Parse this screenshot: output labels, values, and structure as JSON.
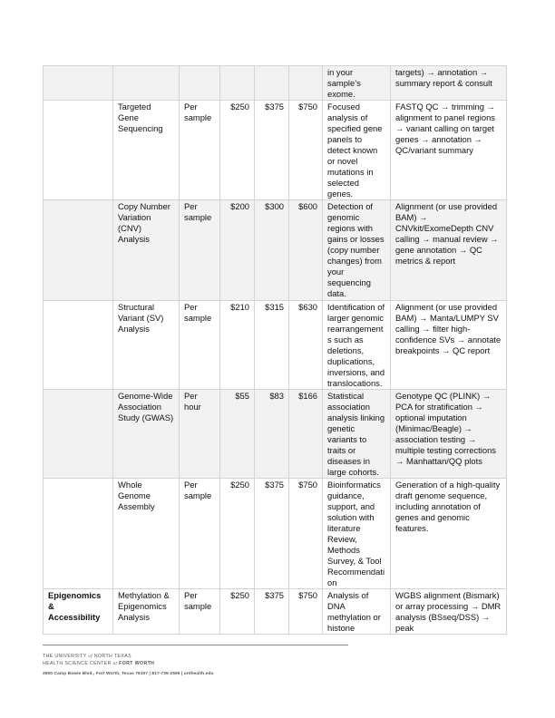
{
  "table": {
    "rows": [
      {
        "category": "",
        "service": "",
        "unit": "",
        "price1": "",
        "price2": "",
        "price3": "",
        "description": "in your sample’s exome.",
        "workflow": "targets) → annotation → summary report & consult"
      },
      {
        "category": "",
        "service": "Targeted Gene Sequencing",
        "unit": "Per sample",
        "price1": "$250",
        "price2": "$375",
        "price3": "$750",
        "description": "Focused analysis of specified gene panels to detect known or novel mutations in selected genes.",
        "workflow": "FASTQ QC → trimming → alignment to panel regions → variant calling on target genes → annotation → QC/variant summary"
      },
      {
        "category": "",
        "service": "Copy Number Variation (CNV) Analysis",
        "unit": "Per sample",
        "price1": "$200",
        "price2": "$300",
        "price3": "$600",
        "description": "Detection of genomic regions with gains or losses (copy number changes) from your sequencing data.",
        "workflow": "Alignment (or use provided BAM) → CNVkit/ExomeDepth CNV calling → manual review → gene annotation → QC metrics & report"
      },
      {
        "category": "",
        "service": "Structural Variant (SV) Analysis",
        "unit": "Per sample",
        "price1": "$210",
        "price2": "$315",
        "price3": "$630",
        "description": "Identification of larger genomic rearrangement s such as deletions, duplications, inversions, and translocations.",
        "workflow": "Alignment (or use provided BAM) → Manta/LUMPY SV calling → filter high-confidence SVs → annotate breakpoints → QC report"
      },
      {
        "category": "",
        "service": "Genome-Wide Association Study (GWAS)",
        "unit": "Per hour",
        "price1": "$55",
        "price2": "$83",
        "price3": "$166",
        "description": "Statistical association analysis linking genetic variants to traits or diseases in large cohorts.",
        "workflow": "Genotype QC (PLINK) → PCA for stratification → optional imputation (Minimac/Beagle) → association testing → multiple testing corrections → Manhattan/QQ plots"
      },
      {
        "category": "",
        "service": "Whole Genome Assembly",
        "unit": "Per sample",
        "price1": "$250",
        "price2": "$375",
        "price3": "$750",
        "description": "Bioinformatics guidance, support, and solution with literature Review, Methods Survey, & Tool Recommendati on",
        "workflow": "Generation of a high-quality draft genome sequence, including annotation of genes and genomic features."
      },
      {
        "category": "Epigenomics & Accessibility",
        "service": "Methylation & Epigenomics Analysis",
        "unit": "Per sample",
        "price1": "$250",
        "price2": "$375",
        "price3": "$750",
        "description": "Analysis of DNA methylation or histone",
        "workflow": "WGBS alignment (Bismark) or array processing → DMR analysis (BSseq/DSS) → peak"
      }
    ]
  },
  "footer": {
    "line1_a": "THE UNIVERSITY",
    "line1_of": "of",
    "line1_b": "NORTH TEXAS",
    "line2_a": "HEALTH SCIENCE CENTER",
    "line2_at": "at",
    "line2_b": "FORT WORTH",
    "address": "3500 Camp Bowie Blvd., Fort Worth, Texas 76107  |  817-735-2555  |  unthealth.edu"
  }
}
